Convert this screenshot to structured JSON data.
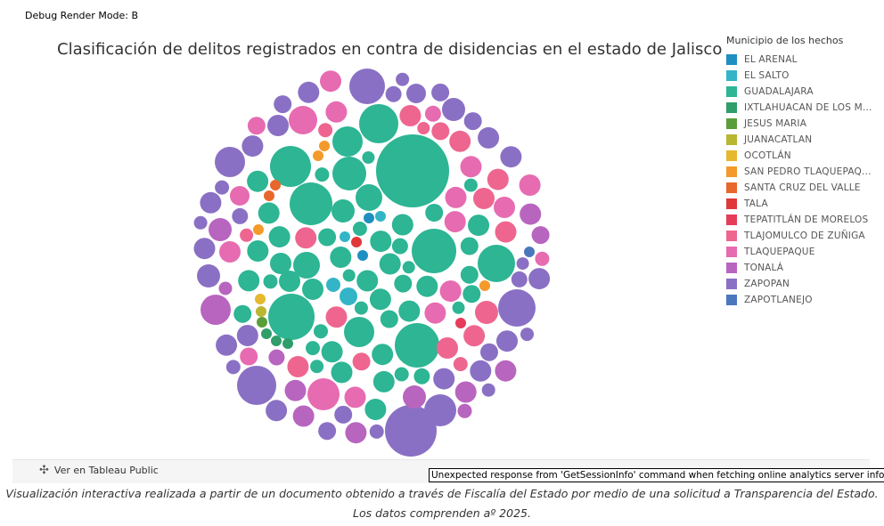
{
  "debug_label": "Debug Render Mode: B",
  "viz": {
    "title": "Clasificación de delitos registrados en contra de disidencias en el estado de Jalisco"
  },
  "legend": {
    "title": "Municipio de los hechos",
    "items": [
      {
        "label": "EL ARENAL",
        "color": "#1f8fc1"
      },
      {
        "label": "EL SALTO",
        "color": "#33b5c7"
      },
      {
        "label": "GUADALAJARA",
        "color": "#2db594"
      },
      {
        "label": "IXTLAHUACAN DE LOS M...",
        "color": "#2f9e6a"
      },
      {
        "label": "JESUS MARIA",
        "color": "#5a9e3a"
      },
      {
        "label": "JUANACATLAN",
        "color": "#b9b632"
      },
      {
        "label": "OCOTLÁN",
        "color": "#e6b82e"
      },
      {
        "label": "SAN PEDRO TLAQUEPAQ...",
        "color": "#f39a2a"
      },
      {
        "label": "SANTA CRUZ DEL VALLE",
        "color": "#e8672a"
      },
      {
        "label": "TALA",
        "color": "#e0383a"
      },
      {
        "label": "TEPATITLÁN DE MORELOS",
        "color": "#e63c5a"
      },
      {
        "label": "TLAJOMULCO DE ZUÑIGA",
        "color": "#ee6690"
      },
      {
        "label": "TLAQUEPAQUE",
        "color": "#e76bb1"
      },
      {
        "label": "TONALÁ",
        "color": "#b865bf"
      },
      {
        "label": "ZAPOPAN",
        "color": "#8a70c4"
      },
      {
        "label": "ZAPOTLANEJO",
        "color": "#4b78bd"
      }
    ]
  },
  "toolbar": {
    "tableau_link": "Ver en Tableau Public",
    "tableau_icon": "tableau-logo-icon"
  },
  "error_message": "Unexpected response from 'GetSessionInfo' command when fetching online analytics server info.",
  "caption": "Visualización interactiva realizada a partir de un documento obtenido a través de Fiscalía del Estado por medio de una solicitud a Transparencia del Estado. Los datos comprenden aº 2025."
}
